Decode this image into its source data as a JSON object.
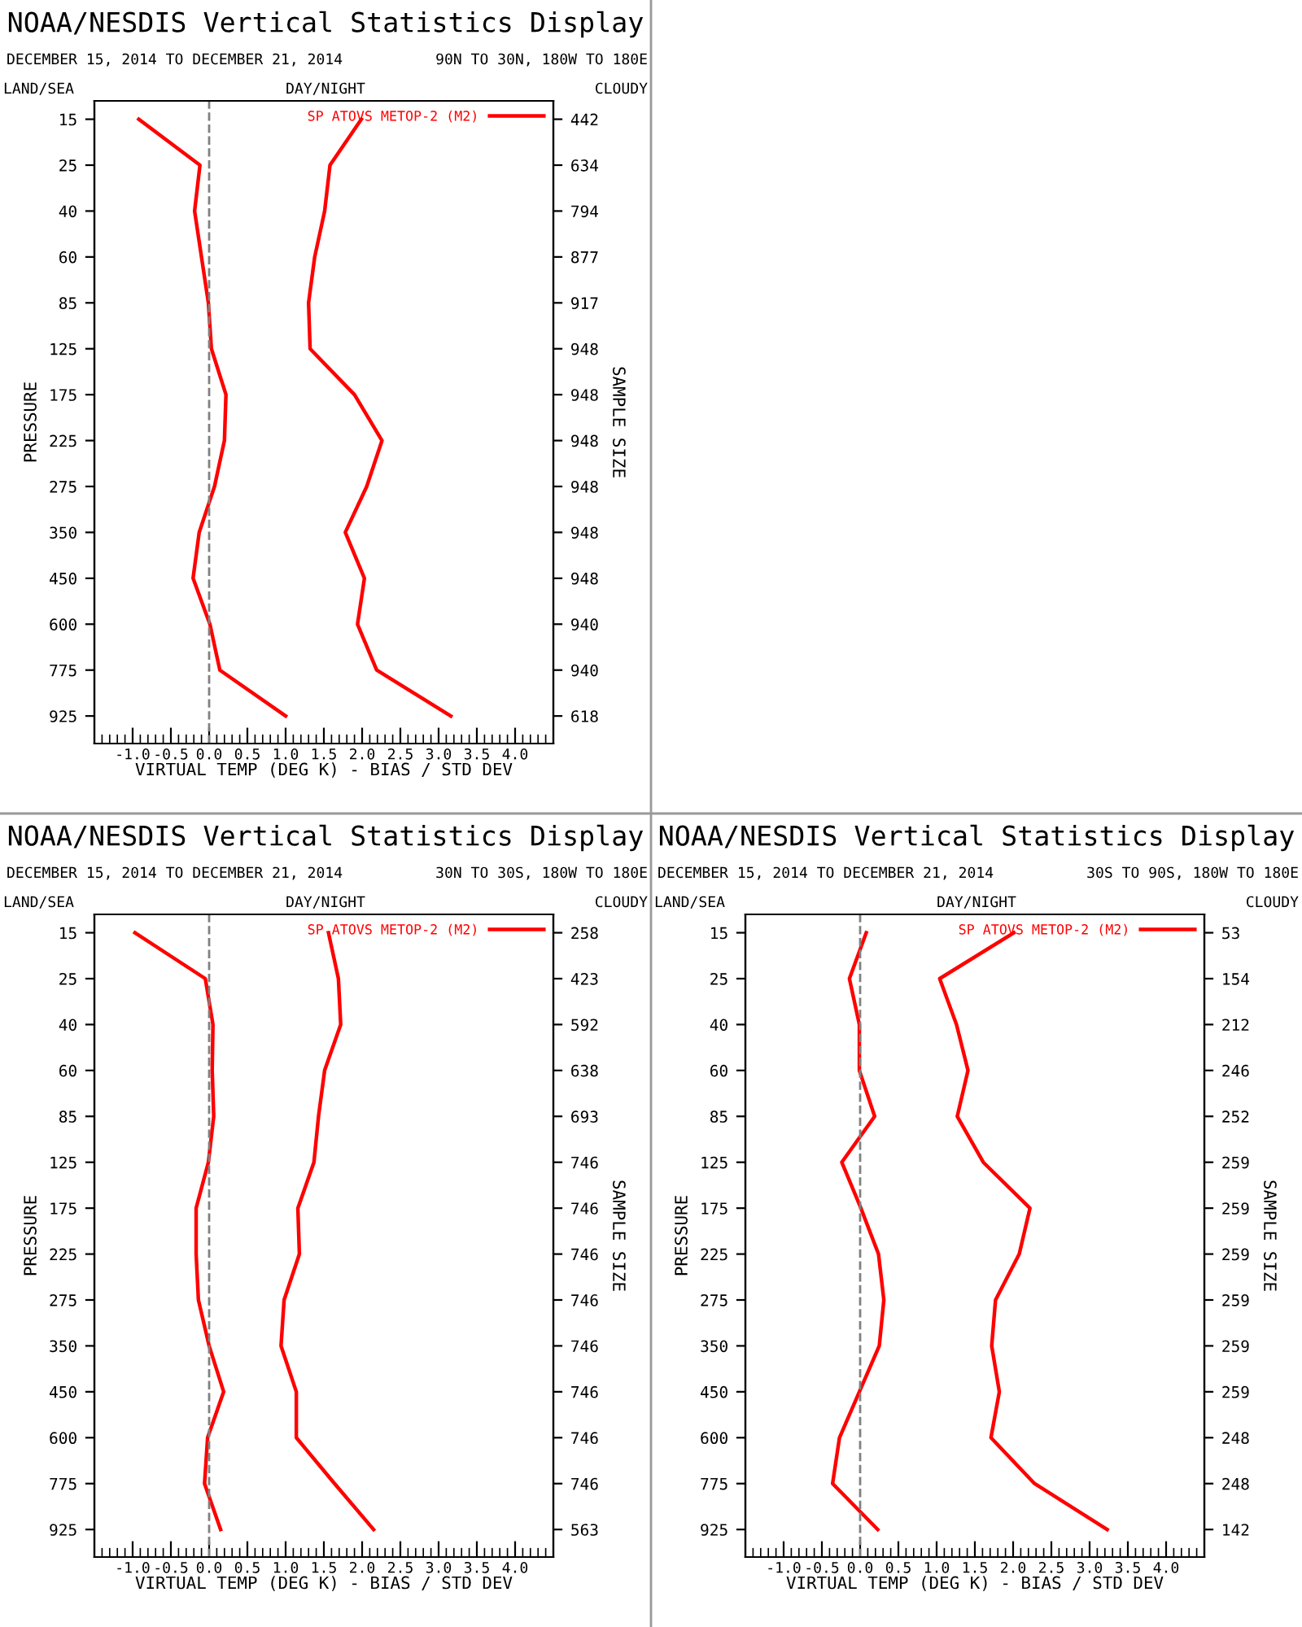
{
  "chart_data": [
    {
      "type": "line",
      "orientation": "horizontal",
      "title": "NOAA/NESDIS Vertical Statistics Display",
      "subtitle": "DECEMBER 15, 2014 TO DECEMBER 21, 2014",
      "annotations": [
        "90N TO 30N, 180W TO 180E",
        "LAND/SEA",
        "DAY/NIGHT",
        "CLOUDY"
      ],
      "xlabel": "VIRTUAL TEMP (DEG K) - BIAS / STD DEV",
      "ylabel": "PRESSURE",
      "y2label": "SAMPLE SIZE",
      "categories": [
        "15",
        "25",
        "40",
        "60",
        "85",
        "125",
        "175",
        "225",
        "275",
        "350",
        "450",
        "600",
        "775",
        "925"
      ],
      "y2_categories": [
        "442",
        "634",
        "794",
        "877",
        "917",
        "948",
        "948",
        "948",
        "948",
        "948",
        "948",
        "940",
        "940",
        "618"
      ],
      "series": [
        {
          "name": "SP ATOVS METOP-2 (M2)",
          "color": "#ff0000",
          "values": [
            -0.92,
            -0.12,
            -0.19,
            -0.1,
            -0.01,
            0.03,
            0.22,
            0.2,
            0.07,
            -0.13,
            -0.21,
            0.01,
            0.14,
            1.0
          ]
        },
        {
          "color": "#ff0000",
          "values": [
            1.99,
            1.58,
            1.51,
            1.38,
            1.3,
            1.32,
            1.9,
            2.26,
            2.06,
            1.78,
            2.03,
            1.94,
            2.19,
            3.16
          ]
        }
      ],
      "xlim": [
        -1.5,
        4.5
      ],
      "xticks": [
        {
          "value": -1,
          "label": "-1.0"
        },
        {
          "value": -0.5,
          "label": "-0.5"
        },
        {
          "value": 0,
          "label": "0.0"
        },
        {
          "value": 0.5,
          "label": "0.5"
        },
        {
          "value": 1,
          "label": "1.0"
        },
        {
          "value": 1.5,
          "label": "1.5"
        },
        {
          "value": 2,
          "label": "2.0"
        },
        {
          "value": 2.5,
          "label": "2.5"
        },
        {
          "value": 3,
          "label": "3.0"
        },
        {
          "value": 3.5,
          "label": "3.5"
        },
        {
          "value": 4,
          "label": "4.0"
        }
      ],
      "ref_lines": [
        {
          "axis": "x",
          "value": 0,
          "color": "#808080",
          "line_style": "dashed"
        }
      ],
      "legend": "top right"
    },
    {
      "type": "line",
      "orientation": "horizontal",
      "title": "NOAA/NESDIS Vertical Statistics Display",
      "subtitle": "DECEMBER 15, 2014 TO DECEMBER 21, 2014",
      "annotations": [
        "30N TO 30S, 180W TO 180E",
        "LAND/SEA",
        "DAY/NIGHT",
        "CLOUDY"
      ],
      "xlabel": "VIRTUAL TEMP (DEG K) - BIAS / STD DEV",
      "ylabel": "PRESSURE",
      "y2label": "SAMPLE SIZE",
      "categories": [
        "15",
        "25",
        "40",
        "60",
        "85",
        "125",
        "175",
        "225",
        "275",
        "350",
        "450",
        "600",
        "775",
        "925"
      ],
      "y2_categories": [
        "258",
        "423",
        "592",
        "638",
        "693",
        "746",
        "746",
        "746",
        "746",
        "746",
        "746",
        "746",
        "746",
        "563"
      ],
      "series": [
        {
          "name": "SP ATOVS METOP-2 (M2)",
          "color": "#ff0000",
          "values": [
            -0.97,
            -0.05,
            0.05,
            0.04,
            0.06,
            -0.01,
            -0.17,
            -0.17,
            -0.14,
            0.0,
            0.19,
            -0.02,
            -0.06,
            0.15
          ]
        },
        {
          "color": "#ff0000",
          "values": [
            1.56,
            1.69,
            1.72,
            1.51,
            1.43,
            1.37,
            1.16,
            1.18,
            0.98,
            0.94,
            1.14,
            1.14,
            1.64,
            2.15
          ]
        }
      ],
      "xlim": [
        -1.5,
        4.5
      ],
      "xticks": [
        {
          "value": -1,
          "label": "-1.0"
        },
        {
          "value": -0.5,
          "label": "-0.5"
        },
        {
          "value": 0,
          "label": "0.0"
        },
        {
          "value": 0.5,
          "label": "0.5"
        },
        {
          "value": 1,
          "label": "1.0"
        },
        {
          "value": 1.5,
          "label": "1.5"
        },
        {
          "value": 2,
          "label": "2.0"
        },
        {
          "value": 2.5,
          "label": "2.5"
        },
        {
          "value": 3,
          "label": "3.0"
        },
        {
          "value": 3.5,
          "label": "3.5"
        },
        {
          "value": 4,
          "label": "4.0"
        }
      ],
      "ref_lines": [
        {
          "axis": "x",
          "value": 0,
          "color": "#808080",
          "line_style": "dashed"
        }
      ],
      "legend": "top right"
    },
    {
      "type": "line",
      "orientation": "horizontal",
      "title": "NOAA/NESDIS Vertical Statistics Display",
      "subtitle": "DECEMBER 15, 2014 TO DECEMBER 21, 2014",
      "annotations": [
        "30S TO 90S, 180W TO 180E",
        "LAND/SEA",
        "DAY/NIGHT",
        "CLOUDY"
      ],
      "xlabel": "VIRTUAL TEMP (DEG K) - BIAS / STD DEV",
      "ylabel": "PRESSURE",
      "y2label": "SAMPLE SIZE",
      "categories": [
        "15",
        "25",
        "40",
        "60",
        "85",
        "125",
        "175",
        "225",
        "275",
        "350",
        "450",
        "600",
        "775",
        "925"
      ],
      "y2_categories": [
        "53",
        "154",
        "212",
        "246",
        "252",
        "259",
        "259",
        "259",
        "259",
        "259",
        "259",
        "248",
        "248",
        "142"
      ],
      "series": [
        {
          "name": "SP ATOVS METOP-2 (M2)",
          "color": "#ff0000",
          "values": [
            0.08,
            -0.14,
            -0.01,
            -0.01,
            0.19,
            -0.24,
            0.01,
            0.24,
            0.31,
            0.25,
            -0.01,
            -0.27,
            -0.36,
            0.23
          ]
        },
        {
          "color": "#ff0000",
          "values": [
            2.01,
            1.04,
            1.26,
            1.41,
            1.27,
            1.61,
            2.22,
            2.08,
            1.77,
            1.72,
            1.82,
            1.71,
            2.28,
            3.23
          ]
        }
      ],
      "xlim": [
        -1.5,
        4.5
      ],
      "xticks": [
        {
          "value": -1,
          "label": "-1.0"
        },
        {
          "value": -0.5,
          "label": "-0.5"
        },
        {
          "value": 0,
          "label": "0.0"
        },
        {
          "value": 0.5,
          "label": "0.5"
        },
        {
          "value": 1,
          "label": "1.0"
        },
        {
          "value": 1.5,
          "label": "1.5"
        },
        {
          "value": 2,
          "label": "2.0"
        },
        {
          "value": 2.5,
          "label": "2.5"
        },
        {
          "value": 3,
          "label": "3.0"
        },
        {
          "value": 3.5,
          "label": "3.5"
        },
        {
          "value": 4,
          "label": "4.0"
        }
      ],
      "ref_lines": [
        {
          "axis": "x",
          "value": 0,
          "color": "#808080",
          "line_style": "dashed"
        }
      ],
      "legend": "top right"
    }
  ]
}
